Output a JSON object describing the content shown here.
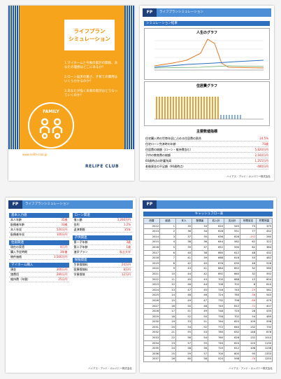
{
  "cover": {
    "title_lines": [
      "ライフプラン",
      "シミュレーション"
    ],
    "questions": [
      "1.マイホームと今後の家計の関係、あなたの理想はどこにあるか？",
      "2.ローン返済の重さ、子育ての費用はいくらかかるのか？",
      "3.あなたが描く未来の家計はどうなっていくのか？"
    ],
    "badge": "FAMILY",
    "url": "www.relife-club.jp",
    "brand": "RELIFE CLUB"
  },
  "results": {
    "logo": "FP",
    "band": "ライフプランシミュレーション",
    "section": "シミュレーション結果",
    "chart1_title": "人生のグラフ",
    "chart2_title": "住居費グラフ",
    "indicators_title": "主要数値指標",
    "indicators": [
      {
        "text": "住宅購入時の世帯年収に占める住居費の割合",
        "value": "24.5%"
      },
      {
        "text": "住宅ローン完済時の年齢",
        "value": "70歳"
      },
      {
        "text": "住居費の総額（ローン・維持費含む）",
        "value": "5,820万円"
      },
      {
        "text": "子供の教育費の総額",
        "value": "2,160万円"
      },
      {
        "text": "60歳時点の貯蓄残高",
        "value": "1,255万円"
      },
      {
        "text": "老後資金の不足額（90歳時点）",
        "value": "-480万円"
      }
    ],
    "footer": "ハイアス・アンド・カンパニー株式会社"
  },
  "inputs": {
    "logo": "FP",
    "band": "ライフプランシミュレーション",
    "sections": [
      {
        "title": "基本入力値",
        "rows": [
          [
            "本人年齢",
            "35歳"
          ],
          [
            "配偶者年齢",
            "33歳"
          ],
          [
            "本人年収",
            "520万円"
          ],
          [
            "配偶者年収",
            "100万円"
          ]
        ]
      },
      {
        "title": "住居関連",
        "rows": [
          [
            "現在の家賃",
            "9万円"
          ],
          [
            "購入予定時期",
            "3年後"
          ],
          [
            "物件価格",
            "3,500万円"
          ]
        ]
      },
      {
        "title": "マイホーム購入",
        "rows": [
          [
            "頭金",
            "300万円"
          ],
          [
            "諸費用",
            "280万円"
          ],
          [
            "維持費（年間）",
            "25万円"
          ]
        ]
      },
      {
        "title": "ローン関連",
        "rows": [
          [
            "借入額",
            "3,200万円"
          ],
          [
            "金利",
            "1.2%"
          ],
          [
            "返済期間",
            "35年"
          ]
        ]
      },
      {
        "title": "子供関連",
        "rows": [
          [
            "第一子年齢",
            "3歳"
          ],
          [
            "第二子年齢",
            "1歳"
          ],
          [
            "進学プラン",
            "私立大学"
          ]
        ]
      },
      {
        "title": "保険関連",
        "rows": [
          [
            "生命保険料",
            "24万円"
          ],
          [
            "医療保険料",
            "8万円"
          ],
          [
            "学資保険",
            "12万円"
          ]
        ]
      }
    ],
    "footer": "ハイアス・アンド・カンパニー株式会社"
  },
  "cashflow": {
    "logo": "FP",
    "title": "キャッシュフロー表",
    "headers": [
      "西暦",
      "経過",
      "本人",
      "配偶者",
      "収入計",
      "支出計",
      "年間収支",
      "貯蓄残高"
    ],
    "rows": [
      [
        2012,
        1,
        35,
        33,
        620,
        545,
        75,
        375
      ],
      [
        2013,
        2,
        36,
        34,
        628,
        551,
        77,
        452
      ],
      [
        2014,
        3,
        37,
        35,
        636,
        828,
        -192,
        260
      ],
      [
        2015,
        4,
        38,
        36,
        644,
        582,
        62,
        322
      ],
      [
        2016,
        5,
        39,
        37,
        652,
        590,
        62,
        384
      ],
      [
        2017,
        6,
        40,
        38,
        660,
        612,
        48,
        432
      ],
      [
        2018,
        7,
        41,
        39,
        668,
        618,
        50,
        482
      ],
      [
        2019,
        8,
        42,
        40,
        676,
        630,
        46,
        528
      ],
      [
        2020,
        9,
        43,
        41,
        684,
        652,
        32,
        560
      ],
      [
        2021,
        10,
        44,
        42,
        692,
        660,
        32,
        592
      ],
      [
        2022,
        11,
        45,
        43,
        700,
        688,
        12,
        604
      ],
      [
        2023,
        12,
        46,
        44,
        708,
        702,
        6,
        610
      ],
      [
        2024,
        13,
        47,
        45,
        716,
        745,
        -29,
        581
      ],
      [
        2025,
        14,
        48,
        46,
        724,
        760,
        -36,
        545
      ],
      [
        2026,
        15,
        49,
        47,
        732,
        798,
        -66,
        479
      ],
      [
        2027,
        16,
        50,
        48,
        740,
        812,
        -72,
        407
      ],
      [
        2028,
        17,
        51,
        49,
        748,
        720,
        28,
        435
      ],
      [
        2029,
        18,
        52,
        50,
        756,
        702,
        54,
        489
      ],
      [
        2030,
        19,
        53,
        51,
        764,
        655,
        109,
        598
      ],
      [
        2031,
        20,
        54,
        52,
        772,
        640,
        132,
        730
      ],
      [
        2032,
        21,
        55,
        53,
        780,
        632,
        148,
        878
      ],
      [
        2033,
        22,
        56,
        54,
        760,
        628,
        132,
        1010
      ],
      [
        2034,
        23,
        57,
        55,
        740,
        620,
        120,
        1130
      ],
      [
        2035,
        24,
        58,
        56,
        720,
        612,
        108,
        1238
      ],
      [
        2036,
        25,
        59,
        57,
        700,
        605,
        95,
        1333
      ],
      [
        2037,
        26,
        60,
        58,
        520,
        598,
        -78,
        1255
      ]
    ],
    "footer": "ハイアス・アンド・カンパニー株式会社"
  }
}
